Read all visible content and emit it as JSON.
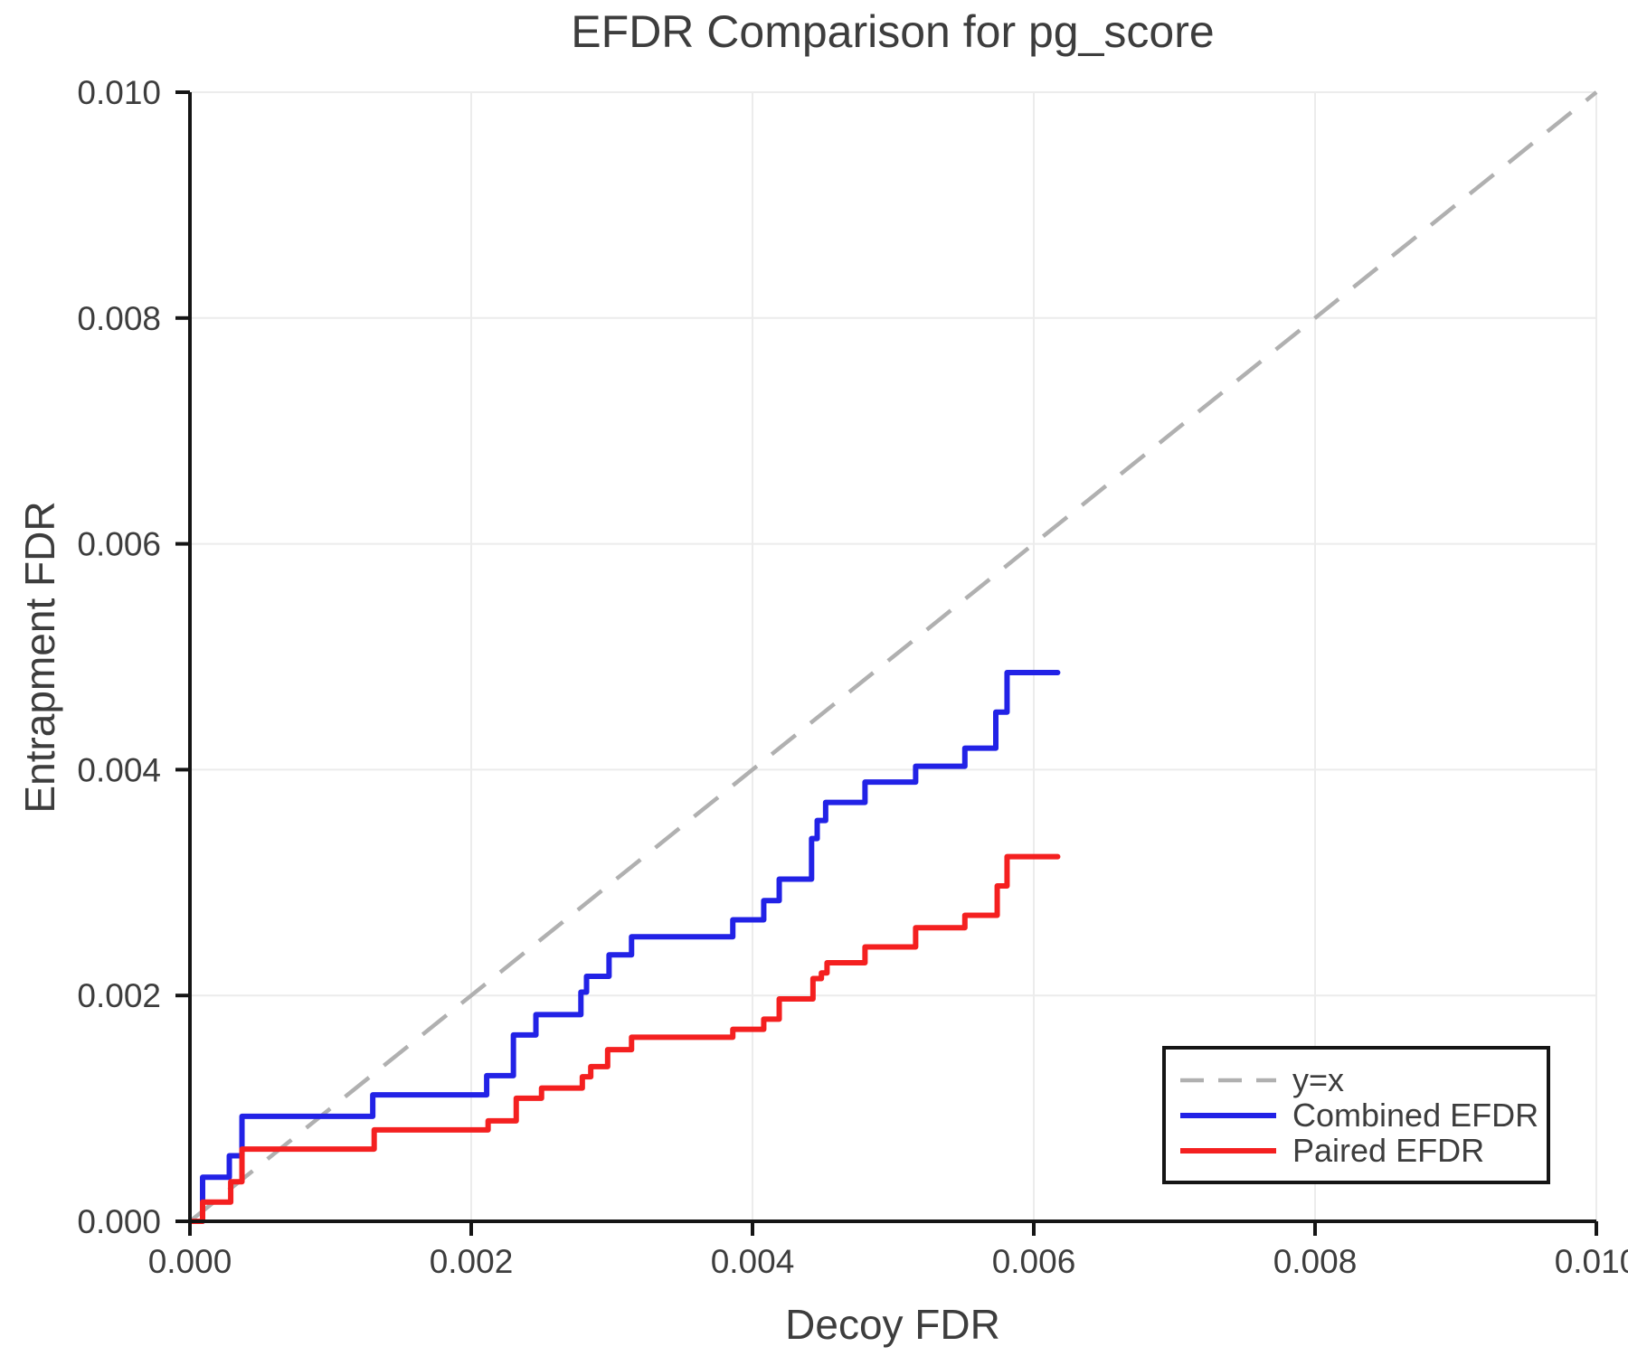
{
  "page": {
    "background": "#ffffff"
  },
  "chart_data": {
    "type": "line",
    "title": "EFDR Comparison for pg_score",
    "xlabel": "Decoy FDR",
    "ylabel": "Entrapment FDR",
    "xlim": [
      0.0,
      0.01
    ],
    "ylim": [
      0.0,
      0.01
    ],
    "x_ticks": [
      0.0,
      0.002,
      0.004,
      0.006,
      0.008,
      0.01
    ],
    "x_tick_labels": [
      "0.000",
      "0.002",
      "0.004",
      "0.006",
      "0.008",
      "0.010"
    ],
    "y_ticks": [
      0.0,
      0.002,
      0.004,
      0.006,
      0.008,
      0.01
    ],
    "y_tick_labels": [
      "0.000",
      "0.002",
      "0.004",
      "0.006",
      "0.008",
      "0.010"
    ],
    "grid": true,
    "legend": {
      "position": "lower right",
      "entries": [
        "y=x",
        "Combined EFDR",
        "Paired EFDR"
      ]
    },
    "colors": {
      "grid": "#ececec",
      "identity": "#b0b0b0",
      "combined": "#2222e6",
      "paired": "#f42020",
      "text": "#3d3d3d",
      "spine": "#151515",
      "background": "#ffffff"
    },
    "series": [
      {
        "name": "y=x",
        "style": "identity",
        "dashed": true,
        "color_key": "identity",
        "points": [
          [
            0.0,
            0.0
          ],
          [
            0.01,
            0.01
          ]
        ]
      },
      {
        "name": "Combined EFDR",
        "style": "step",
        "dashed": false,
        "color_key": "combined",
        "end_x": 0.00617,
        "points": [
          [
            1e-05,
            0.0
          ],
          [
            9e-05,
            0.00039
          ],
          [
            0.00028,
            0.00058
          ],
          [
            0.00037,
            0.00093
          ],
          [
            0.0013,
            0.00112
          ],
          [
            0.00211,
            0.00129
          ],
          [
            0.0023,
            0.00165
          ],
          [
            0.00246,
            0.00183
          ],
          [
            0.00278,
            0.00203
          ],
          [
            0.00282,
            0.00217
          ],
          [
            0.00298,
            0.00236
          ],
          [
            0.00314,
            0.00252
          ],
          [
            0.00386,
            0.00267
          ],
          [
            0.00408,
            0.00284
          ],
          [
            0.00419,
            0.00303
          ],
          [
            0.00442,
            0.00339
          ],
          [
            0.00446,
            0.00355
          ],
          [
            0.00452,
            0.00371
          ],
          [
            0.0048,
            0.00389
          ],
          [
            0.00516,
            0.00403
          ],
          [
            0.00551,
            0.00419
          ],
          [
            0.00573,
            0.00451
          ],
          [
            0.00581,
            0.00486
          ]
        ]
      },
      {
        "name": "Paired EFDR",
        "style": "step",
        "dashed": false,
        "color_key": "paired",
        "end_x": 0.00617,
        "points": [
          [
            1e-05,
            0.0
          ],
          [
            9e-05,
            0.00017
          ],
          [
            0.00029,
            0.00035
          ],
          [
            0.00037,
            0.00064
          ],
          [
            0.00131,
            0.00081
          ],
          [
            0.00212,
            0.00089
          ],
          [
            0.00232,
            0.00109
          ],
          [
            0.0025,
            0.00118
          ],
          [
            0.00279,
            0.00128
          ],
          [
            0.00285,
            0.00137
          ],
          [
            0.00297,
            0.00152
          ],
          [
            0.00314,
            0.00163
          ],
          [
            0.00386,
            0.0017
          ],
          [
            0.00408,
            0.00179
          ],
          [
            0.00419,
            0.00197
          ],
          [
            0.00443,
            0.00215
          ],
          [
            0.00449,
            0.0022
          ],
          [
            0.00453,
            0.00229
          ],
          [
            0.0048,
            0.00243
          ],
          [
            0.00516,
            0.0026
          ],
          [
            0.00551,
            0.00271
          ],
          [
            0.00574,
            0.00297
          ],
          [
            0.00581,
            0.00323
          ]
        ]
      }
    ]
  }
}
